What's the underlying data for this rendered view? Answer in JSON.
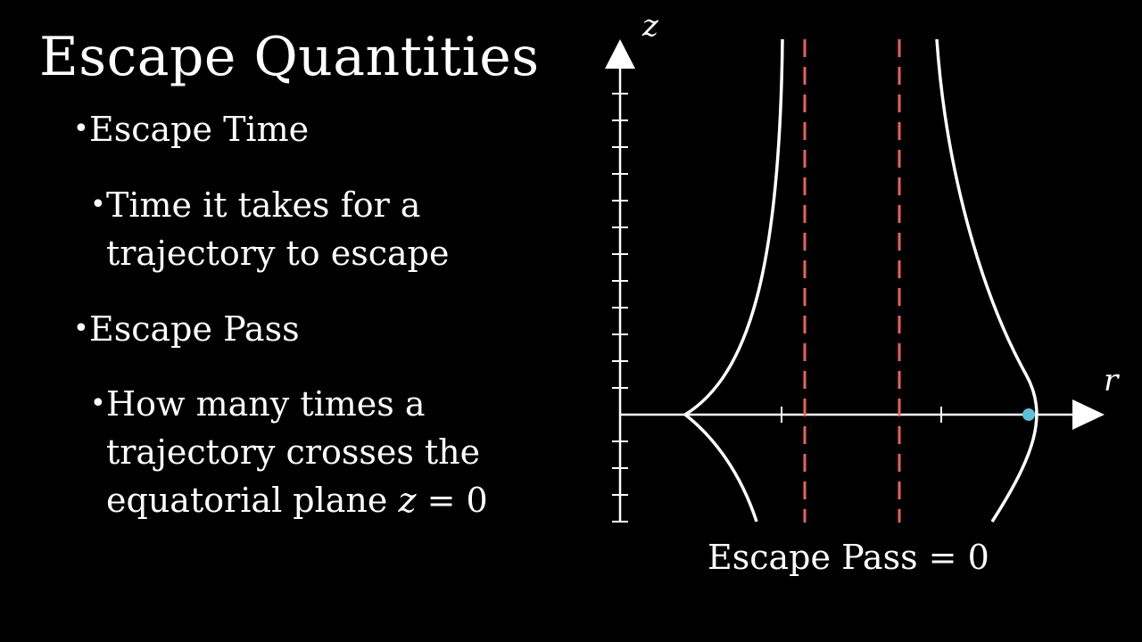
{
  "title": "Escape Quantities",
  "bullets": {
    "escape_time": "Escape Time",
    "escape_time_desc": [
      "Time it takes for a",
      "trajectory to escape"
    ],
    "escape_pass": "Escape Pass",
    "escape_pass_desc_1": "How many times a",
    "escape_pass_desc_2": "trajectory crosses the",
    "escape_pass_desc_3_prefix": "equatorial plane ",
    "escape_pass_desc_3_var": "z",
    "escape_pass_desc_3_suffix": " = 0"
  },
  "diagram": {
    "z_axis_label": "z",
    "r_axis_label": "r",
    "colors": {
      "curve": "#ffffff",
      "dashed_line": "#e8645a",
      "particle": "#5bc0de"
    },
    "caption_label": "Escape Pass",
    "caption_eq": " = ",
    "caption_value": "0"
  }
}
